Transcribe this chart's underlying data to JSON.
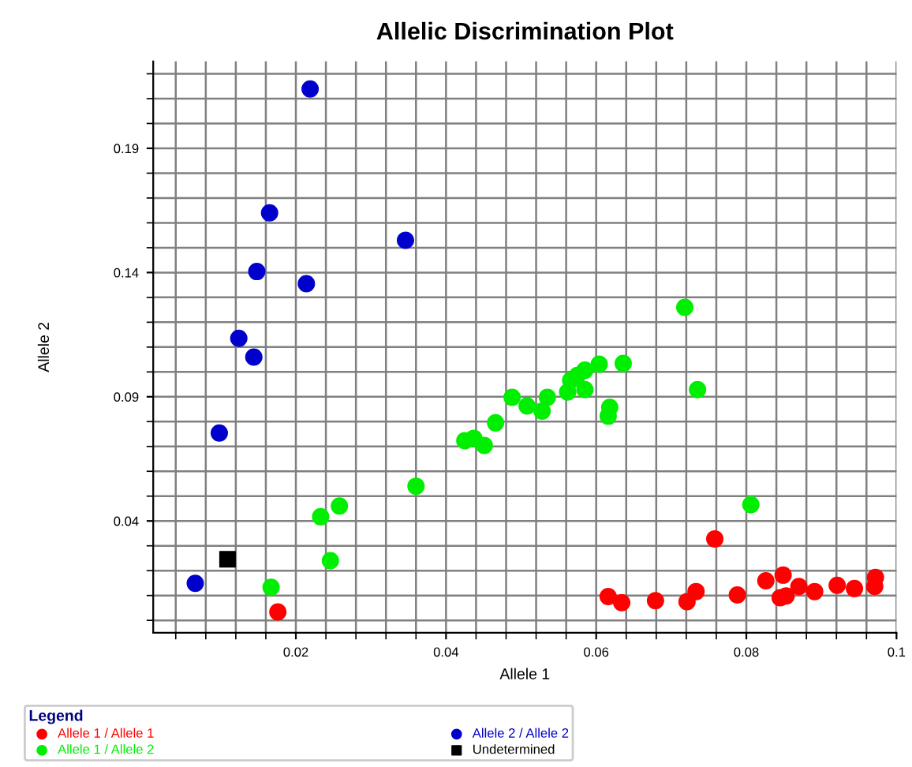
{
  "chart_data": {
    "type": "scatter",
    "title": "Allelic Discrimination Plot",
    "xlabel": "Allele 1",
    "ylabel": "Allele 2",
    "legend_title": "Legend",
    "xlim": [
      0.001,
      0.1
    ],
    "ylim": [
      -0.005,
      0.225
    ],
    "xticks": [
      0.02,
      0.04,
      0.06,
      0.08,
      0.1
    ],
    "yticks": [
      0.04,
      0.09,
      0.14,
      0.19
    ],
    "grid": true,
    "legend": "bottom",
    "series": [
      {
        "name": "Allele 1 / Allele 1",
        "color": "#ff0000",
        "marker": "circle",
        "x": [
          0.0176,
          0.0758,
          0.0616,
          0.0634,
          0.0679,
          0.0721,
          0.0733,
          0.0788,
          0.0826,
          0.0849,
          0.0845,
          0.0853,
          0.087,
          0.0891,
          0.0921,
          0.0944,
          0.0972,
          0.0971
        ],
        "values": [
          0.0034,
          0.0328,
          0.0096,
          0.0071,
          0.0079,
          0.0075,
          0.0116,
          0.0102,
          0.0159,
          0.0182,
          0.0091,
          0.0098,
          0.0136,
          0.0116,
          0.0141,
          0.0128,
          0.0173,
          0.0136
        ]
      },
      {
        "name": "Allele 1 / Allele 2",
        "color": "#00ee00",
        "marker": "circle",
        "x": [
          0.036,
          0.0258,
          0.0233,
          0.0246,
          0.0167,
          0.0425,
          0.0437,
          0.0451,
          0.0466,
          0.0488,
          0.0508,
          0.0528,
          0.0535,
          0.0562,
          0.0566,
          0.0575,
          0.0585,
          0.0585,
          0.0604,
          0.0636,
          0.0618,
          0.0616,
          0.0735,
          0.0806,
          0.0718
        ],
        "values": [
          0.054,
          0.046,
          0.0417,
          0.024,
          0.0133,
          0.0723,
          0.0733,
          0.0704,
          0.0795,
          0.0898,
          0.0863,
          0.0842,
          0.0898,
          0.0919,
          0.0966,
          0.0986,
          0.0929,
          0.1007,
          0.1031,
          0.1034,
          0.0857,
          0.0822,
          0.0929,
          0.0466,
          0.126
        ]
      },
      {
        "name": "Allele 2 / Allele 2",
        "color": "#0000cc",
        "marker": "circle",
        "x": [
          0.0219,
          0.0165,
          0.0346,
          0.0148,
          0.0214,
          0.0124,
          0.0144,
          0.0098,
          0.0066
        ],
        "values": [
          0.2139,
          0.164,
          0.153,
          0.1404,
          0.1355,
          0.1135,
          0.106,
          0.0754,
          0.0149
        ]
      },
      {
        "name": "Undetermined",
        "color": "#000000",
        "marker": "square",
        "x": [
          0.0109
        ],
        "values": [
          0.0246
        ]
      }
    ]
  }
}
